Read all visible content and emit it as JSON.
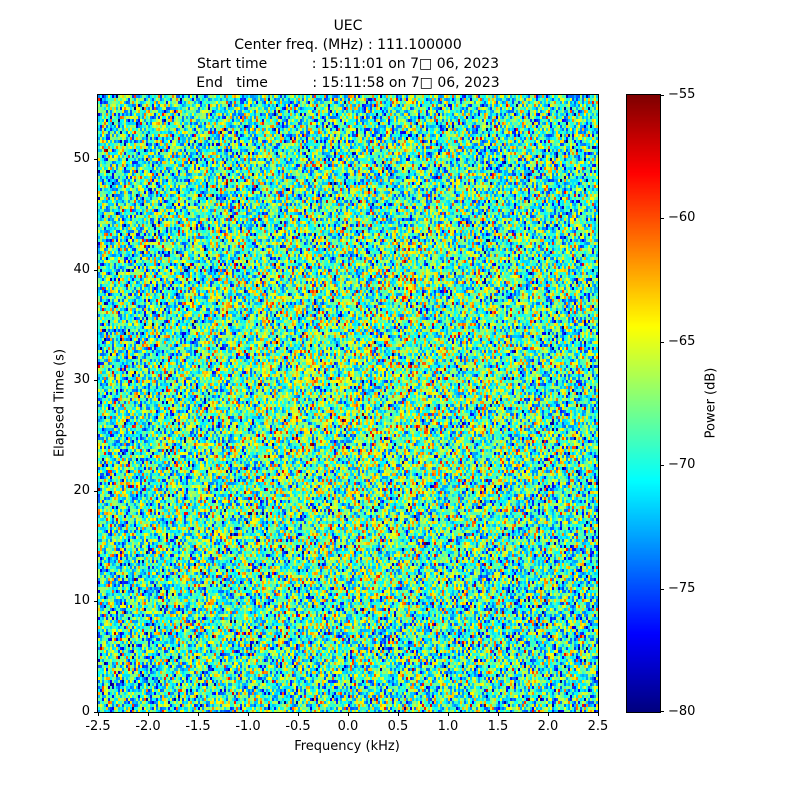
{
  "title": "UEC",
  "subtitle_lines": [
    "Center freq. (MHz) : 111.100000",
    "Start time          : 15:11:01 on 7□ 06, 2023",
    "End   time          : 15:11:58 on 7□ 06, 2023"
  ],
  "metadata_visible": {
    "center_freq_mhz": "111.100000",
    "start_time": "15:11:01 on 7□ 06, 2023",
    "end_time": "15:11:58 on 7□ 06, 2023"
  },
  "chart_data": {
    "type": "heatmap",
    "title": "UEC",
    "subtitle": [
      "Center freq. (MHz) : 111.100000",
      "Start time : 15:11:01 on 7□ 06, 2023",
      "End   time : 15:11:58 on 7□ 06, 2023"
    ],
    "xlabel": "Frequency (kHz)",
    "ylabel": "Elapsed Time (s)",
    "xlim": [
      -2.5,
      2.5
    ],
    "ylim": [
      0,
      55.8
    ],
    "grid": false,
    "legend": "none",
    "xticks": [
      {
        "label": "-2.5",
        "value": -2.5
      },
      {
        "label": "-2.0",
        "value": -2.0
      },
      {
        "label": "-1.5",
        "value": -1.5
      },
      {
        "label": "-1.0",
        "value": -1.0
      },
      {
        "label": "-0.5",
        "value": -0.5
      },
      {
        "label": "0.0",
        "value": 0.0
      },
      {
        "label": "0.5",
        "value": 0.5
      },
      {
        "label": "1.0",
        "value": 1.0
      },
      {
        "label": "1.5",
        "value": 1.5
      },
      {
        "label": "2.0",
        "value": 2.0
      },
      {
        "label": "2.5",
        "value": 2.5
      }
    ],
    "yticks": [
      {
        "label": "0",
        "value": 0
      },
      {
        "label": "10",
        "value": 10
      },
      {
        "label": "20",
        "value": 20
      },
      {
        "label": "30",
        "value": 30
      },
      {
        "label": "40",
        "value": 40
      },
      {
        "label": "50",
        "value": 50
      }
    ],
    "colorbar": {
      "label": "Power (dB)",
      "vmin": -80,
      "vmax": -55,
      "colormap": "jet",
      "ticks": [
        {
          "label": "−55",
          "value": -55
        },
        {
          "label": "−60",
          "value": -60
        },
        {
          "label": "−65",
          "value": -65
        },
        {
          "label": "−70",
          "value": -70
        },
        {
          "label": "−75",
          "value": -75
        },
        {
          "label": "−80",
          "value": -80
        }
      ]
    },
    "data_description": "Spectrogram/waterfall of wideband noise: values are random power levels centered near −69.5 dB (std ≈ 4.2 dB, clamped to [−80, −55] dB) with a faint warm brightening near the center of the plot; no coherent signal lines visible.",
    "noise_model": {
      "mean_db": -69.8,
      "std_db": 4.2,
      "center_bias_db": 2.0,
      "clamp_db": [
        -80,
        -55
      ],
      "cols": 250,
      "rows": 206,
      "seed": 42
    }
  }
}
